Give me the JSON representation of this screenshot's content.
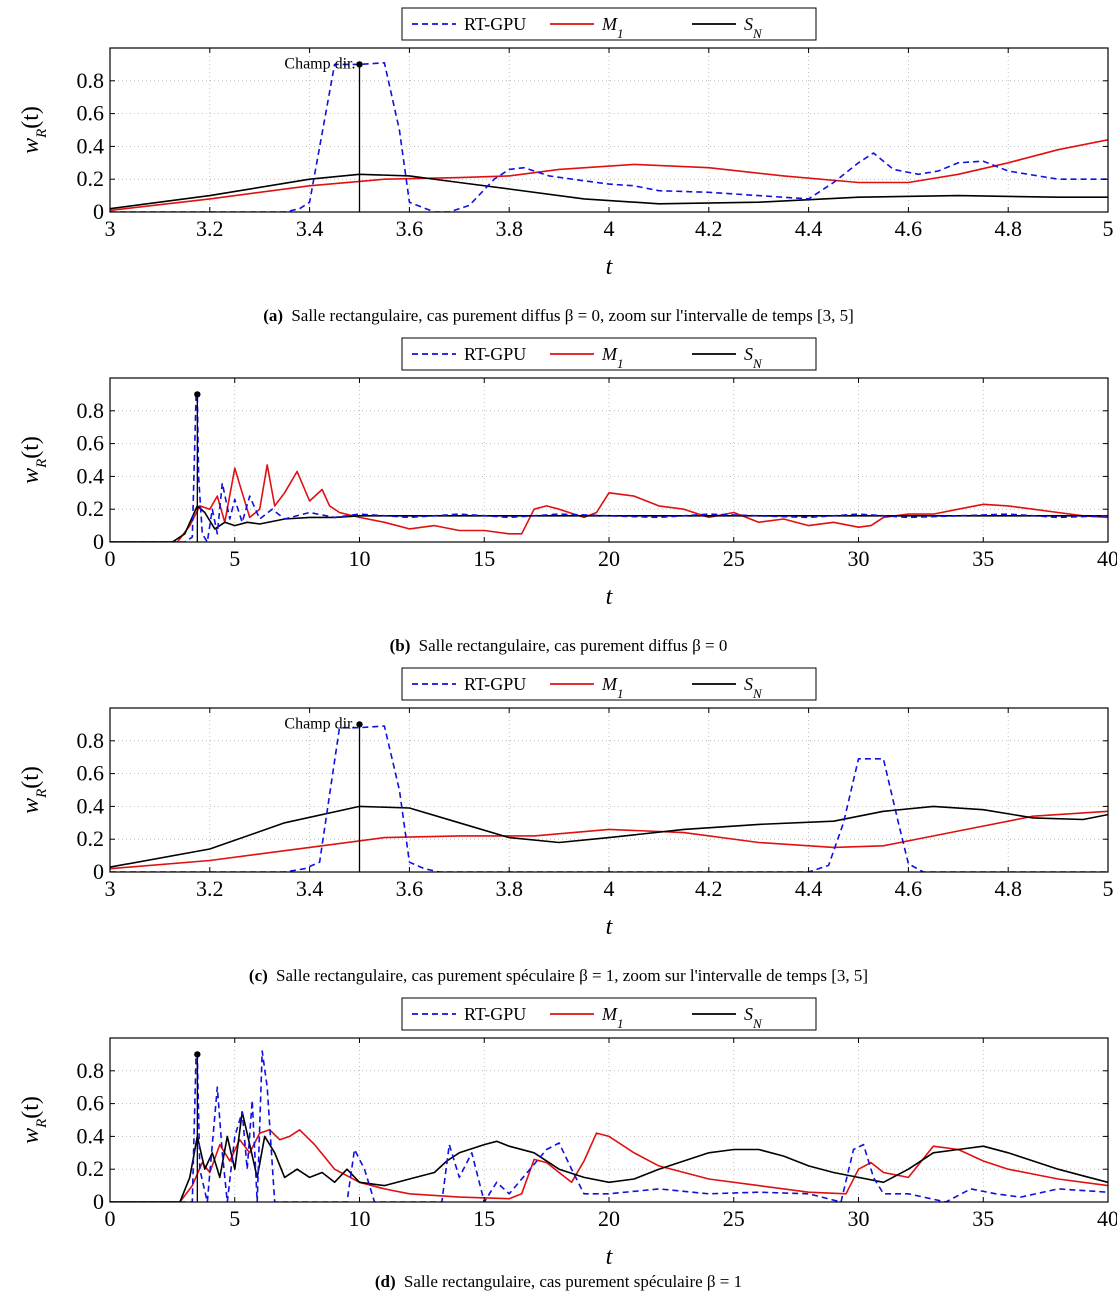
{
  "colors": {
    "rt_gpu": "#1010e0",
    "m1": "#e01010",
    "sn": "#000000",
    "grid": "#b0b0b0"
  },
  "chart_data": [
    {
      "id": "a",
      "type": "line",
      "caption_label": "(a)",
      "caption_text": "Salle rectangulaire, cas purement diffus β = 0, zoom sur l'intervalle de temps [3, 5]",
      "xlabel": "t",
      "ylabel": "w_R(t)",
      "xlim": [
        3,
        5
      ],
      "ylim": [
        0,
        1.0
      ],
      "xticks": [
        3,
        3.2,
        3.4,
        3.6,
        3.8,
        4,
        4.2,
        4.4,
        4.6,
        4.8,
        5
      ],
      "yticks": [
        0,
        0.2,
        0.4,
        0.6,
        0.8
      ],
      "grid": true,
      "legend_position": "top-center-outside",
      "annotation": {
        "text": "Champ dir.",
        "x": 3.5,
        "y": 0.9
      },
      "series": [
        {
          "name": "RT-GPU",
          "style": "dashed",
          "color_key": "rt_gpu",
          "x": [
            3.0,
            3.35,
            3.38,
            3.4,
            3.45,
            3.5,
            3.55,
            3.58,
            3.6,
            3.65,
            3.68,
            3.72,
            3.77,
            3.8,
            3.83,
            3.88,
            3.95,
            4.0,
            4.05,
            4.1,
            4.2,
            4.3,
            4.4,
            4.45,
            4.5,
            4.53,
            4.57,
            4.62,
            4.66,
            4.7,
            4.75,
            4.8,
            4.9,
            5.0
          ],
          "y": [
            0.0,
            0.0,
            0.02,
            0.06,
            0.9,
            0.9,
            0.91,
            0.5,
            0.06,
            0.0,
            0.0,
            0.04,
            0.2,
            0.26,
            0.27,
            0.22,
            0.19,
            0.17,
            0.16,
            0.13,
            0.12,
            0.1,
            0.08,
            0.18,
            0.3,
            0.36,
            0.26,
            0.23,
            0.25,
            0.3,
            0.31,
            0.25,
            0.2,
            0.2
          ]
        },
        {
          "name": "M_1",
          "style": "solid",
          "color_key": "m1",
          "x": [
            3.0,
            3.2,
            3.4,
            3.55,
            3.7,
            3.8,
            3.9,
            4.05,
            4.2,
            4.35,
            4.5,
            4.6,
            4.7,
            4.8,
            4.9,
            5.0
          ],
          "y": [
            0.01,
            0.08,
            0.16,
            0.2,
            0.21,
            0.22,
            0.26,
            0.29,
            0.27,
            0.22,
            0.18,
            0.18,
            0.23,
            0.3,
            0.38,
            0.44
          ]
        },
        {
          "name": "S_N",
          "style": "solid",
          "color_key": "sn",
          "x": [
            3.0,
            3.2,
            3.4,
            3.5,
            3.6,
            3.7,
            3.8,
            3.95,
            4.1,
            4.3,
            4.5,
            4.7,
            4.9,
            5.0
          ],
          "y": [
            0.02,
            0.1,
            0.2,
            0.23,
            0.22,
            0.18,
            0.14,
            0.08,
            0.05,
            0.06,
            0.09,
            0.1,
            0.09,
            0.09
          ]
        }
      ]
    },
    {
      "id": "b",
      "type": "line",
      "caption_label": "(b)",
      "caption_text": "Salle rectangulaire, cas purement diffus β = 0",
      "xlabel": "t",
      "ylabel": "w_R(t)",
      "xlim": [
        0,
        40
      ],
      "ylim": [
        0,
        1.0
      ],
      "xticks": [
        0,
        5,
        10,
        15,
        20,
        25,
        30,
        35,
        40
      ],
      "yticks": [
        0,
        0.2,
        0.4,
        0.6,
        0.8
      ],
      "grid": true,
      "legend_position": "top-center-outside",
      "annotation": {
        "text": "",
        "x": 3.5,
        "y": 0.9
      },
      "series": [
        {
          "name": "RT-GPU",
          "style": "dashed",
          "color_key": "rt_gpu",
          "x": [
            0,
            3.0,
            3.3,
            3.45,
            3.5,
            3.55,
            3.7,
            3.9,
            4.1,
            4.3,
            4.5,
            4.8,
            5.0,
            5.3,
            5.6,
            6.0,
            6.5,
            7.0,
            8.0,
            9.0,
            10.0,
            12.0,
            14.0,
            16.0,
            18.0,
            20.0,
            22.0,
            24.0,
            26.0,
            28.0,
            30.0,
            32.0,
            34.0,
            36.0,
            38.0,
            40.0
          ],
          "y": [
            0,
            0,
            0.03,
            0.9,
            0.9,
            0.4,
            0.05,
            0.0,
            0.2,
            0.05,
            0.36,
            0.14,
            0.26,
            0.12,
            0.28,
            0.14,
            0.2,
            0.14,
            0.18,
            0.15,
            0.17,
            0.15,
            0.17,
            0.15,
            0.17,
            0.16,
            0.15,
            0.17,
            0.16,
            0.15,
            0.17,
            0.15,
            0.16,
            0.17,
            0.15,
            0.16
          ]
        },
        {
          "name": "M_1",
          "style": "solid",
          "color_key": "m1",
          "x": [
            0,
            2.7,
            3.2,
            3.6,
            4.0,
            4.3,
            4.6,
            5.0,
            5.3,
            5.6,
            6.0,
            6.3,
            6.6,
            7.0,
            7.5,
            8.0,
            8.5,
            8.8,
            9.2,
            10.0,
            11.0,
            12.0,
            13.0,
            14.0,
            15.0,
            16.0,
            16.5,
            17.0,
            17.5,
            18.0,
            19.0,
            19.5,
            20.0,
            21.0,
            22.0,
            23.0,
            24.0,
            25.0,
            26.0,
            27.0,
            28.0,
            29.0,
            30.0,
            30.5,
            31.0,
            32.0,
            33.0,
            34.0,
            35.0,
            36.0,
            37.0,
            38.0,
            39.0,
            40.0
          ],
          "y": [
            0,
            0.0,
            0.1,
            0.22,
            0.2,
            0.28,
            0.12,
            0.45,
            0.3,
            0.15,
            0.2,
            0.47,
            0.22,
            0.3,
            0.43,
            0.25,
            0.32,
            0.22,
            0.18,
            0.15,
            0.12,
            0.08,
            0.1,
            0.07,
            0.07,
            0.05,
            0.05,
            0.2,
            0.22,
            0.2,
            0.15,
            0.18,
            0.3,
            0.28,
            0.22,
            0.2,
            0.15,
            0.18,
            0.12,
            0.14,
            0.1,
            0.12,
            0.09,
            0.1,
            0.15,
            0.17,
            0.17,
            0.2,
            0.23,
            0.22,
            0.2,
            0.18,
            0.16,
            0.15
          ]
        },
        {
          "name": "S_N",
          "style": "solid",
          "color_key": "sn",
          "x": [
            0,
            2.5,
            3.0,
            3.5,
            3.8,
            4.2,
            4.6,
            5.0,
            5.5,
            6.0,
            7.0,
            8.0,
            9.0,
            10.0,
            12.0,
            15.0,
            20.0,
            25.0,
            30.0,
            35.0,
            40.0
          ],
          "y": [
            0,
            0,
            0.05,
            0.22,
            0.18,
            0.08,
            0.12,
            0.1,
            0.12,
            0.11,
            0.14,
            0.15,
            0.15,
            0.16,
            0.16,
            0.16,
            0.16,
            0.16,
            0.16,
            0.16,
            0.16
          ]
        }
      ]
    },
    {
      "id": "c",
      "type": "line",
      "caption_label": "(c)",
      "caption_text": "Salle rectangulaire, cas purement spéculaire β = 1, zoom sur l'intervalle de temps [3, 5]",
      "xlabel": "t",
      "ylabel": "w_R(t)",
      "xlim": [
        3,
        5
      ],
      "ylim": [
        0,
        1.0
      ],
      "xticks": [
        3,
        3.2,
        3.4,
        3.6,
        3.8,
        4,
        4.2,
        4.4,
        4.6,
        4.8,
        5
      ],
      "yticks": [
        0,
        0.2,
        0.4,
        0.6,
        0.8
      ],
      "grid": true,
      "legend_position": "top-center-outside",
      "annotation": {
        "text": "Champ dir.",
        "x": 3.5,
        "y": 0.9
      },
      "series": [
        {
          "name": "RT-GPU",
          "style": "dashed",
          "color_key": "rt_gpu",
          "x": [
            3.0,
            3.35,
            3.39,
            3.42,
            3.46,
            3.5,
            3.55,
            3.58,
            3.6,
            3.63,
            3.66,
            4.4,
            4.44,
            4.47,
            4.5,
            4.55,
            4.58,
            4.6,
            4.63,
            5.0
          ],
          "y": [
            0.0,
            0.0,
            0.02,
            0.06,
            0.88,
            0.88,
            0.89,
            0.5,
            0.06,
            0.02,
            0.0,
            0.0,
            0.04,
            0.3,
            0.69,
            0.69,
            0.3,
            0.05,
            0.0,
            0.0
          ]
        },
        {
          "name": "M_1",
          "style": "solid",
          "color_key": "m1",
          "x": [
            3.0,
            3.2,
            3.4,
            3.55,
            3.7,
            3.85,
            4.0,
            4.15,
            4.3,
            4.45,
            4.55,
            4.7,
            4.85,
            5.0
          ],
          "y": [
            0.02,
            0.07,
            0.15,
            0.21,
            0.22,
            0.22,
            0.26,
            0.24,
            0.18,
            0.15,
            0.16,
            0.25,
            0.34,
            0.37
          ]
        },
        {
          "name": "S_N",
          "style": "solid",
          "color_key": "sn",
          "x": [
            3.0,
            3.2,
            3.35,
            3.5,
            3.6,
            3.7,
            3.8,
            3.9,
            4.0,
            4.15,
            4.3,
            4.45,
            4.55,
            4.65,
            4.75,
            4.85,
            4.95,
            5.0
          ],
          "y": [
            0.03,
            0.14,
            0.3,
            0.4,
            0.39,
            0.3,
            0.21,
            0.18,
            0.21,
            0.26,
            0.29,
            0.31,
            0.37,
            0.4,
            0.38,
            0.33,
            0.32,
            0.35
          ]
        }
      ]
    },
    {
      "id": "d",
      "type": "line",
      "caption_label": "(d)",
      "caption_text": "Salle rectangulaire, cas purement spéculaire β = 1",
      "xlabel": "t",
      "ylabel": "w_R(t)",
      "xlim": [
        0,
        40
      ],
      "ylim": [
        0,
        1.0
      ],
      "xticks": [
        0,
        5,
        10,
        15,
        20,
        25,
        30,
        35,
        40
      ],
      "yticks": [
        0,
        0.2,
        0.4,
        0.6,
        0.8
      ],
      "grid": true,
      "legend_position": "top-center-outside",
      "annotation": {
        "text": "",
        "x": 3.5,
        "y": 0.9
      },
      "series": [
        {
          "name": "RT-GPU",
          "style": "dashed",
          "color_key": "rt_gpu",
          "x": [
            0,
            3.3,
            3.45,
            3.5,
            3.6,
            3.9,
            4.3,
            4.5,
            4.7,
            5.0,
            5.3,
            5.5,
            5.7,
            5.9,
            6.1,
            6.3,
            6.6,
            7.0,
            9.5,
            9.8,
            10.2,
            10.6,
            11.0,
            13.3,
            13.6,
            14.0,
            14.5,
            15.0,
            15.5,
            16.0,
            17.5,
            18.0,
            18.5,
            19.0,
            20.0,
            22.0,
            24.0,
            26.0,
            28.0,
            29.3,
            29.8,
            30.2,
            30.6,
            31.0,
            32.0,
            33.5,
            34.5,
            35.5,
            36.5,
            38.0,
            40.0
          ],
          "y": [
            0,
            0,
            0.9,
            0.9,
            0.2,
            0.0,
            0.7,
            0.3,
            0.0,
            0.4,
            0.55,
            0.2,
            0.62,
            0.0,
            0.92,
            0.7,
            0.0,
            0.0,
            0.0,
            0.32,
            0.2,
            0.0,
            0.0,
            0.0,
            0.35,
            0.15,
            0.3,
            0.0,
            0.12,
            0.05,
            0.32,
            0.36,
            0.2,
            0.05,
            0.05,
            0.08,
            0.05,
            0.06,
            0.05,
            0.0,
            0.32,
            0.35,
            0.15,
            0.05,
            0.05,
            0.0,
            0.08,
            0.05,
            0.03,
            0.08,
            0.06
          ]
        },
        {
          "name": "M_1",
          "style": "solid",
          "color_key": "m1",
          "x": [
            0,
            2.8,
            3.3,
            3.7,
            4.0,
            4.4,
            4.8,
            5.2,
            5.6,
            6.0,
            6.4,
            6.8,
            7.2,
            7.6,
            8.2,
            9.0,
            10.0,
            11.0,
            12.0,
            14.0,
            16.0,
            16.5,
            17.0,
            17.5,
            18.0,
            18.5,
            19.0,
            19.5,
            20.0,
            21.0,
            22.0,
            24.0,
            26.0,
            28.0,
            29.5,
            30.0,
            30.5,
            31.0,
            32.0,
            33.0,
            34.0,
            35.0,
            36.0,
            38.0,
            40.0
          ],
          "y": [
            0,
            0.0,
            0.1,
            0.24,
            0.18,
            0.35,
            0.25,
            0.38,
            0.3,
            0.42,
            0.44,
            0.38,
            0.4,
            0.44,
            0.35,
            0.2,
            0.12,
            0.08,
            0.05,
            0.03,
            0.02,
            0.05,
            0.26,
            0.24,
            0.18,
            0.12,
            0.25,
            0.42,
            0.4,
            0.3,
            0.22,
            0.14,
            0.1,
            0.06,
            0.05,
            0.2,
            0.24,
            0.18,
            0.15,
            0.34,
            0.32,
            0.25,
            0.2,
            0.14,
            0.1
          ]
        },
        {
          "name": "S_N",
          "style": "solid",
          "color_key": "sn",
          "x": [
            0,
            2.8,
            3.2,
            3.5,
            3.8,
            4.1,
            4.4,
            4.7,
            5.0,
            5.3,
            5.6,
            5.9,
            6.2,
            6.6,
            7.0,
            7.5,
            8.0,
            8.5,
            9.0,
            9.5,
            10.0,
            11.0,
            12.0,
            13.0,
            13.5,
            14.0,
            15.0,
            15.5,
            16.0,
            17.0,
            18.0,
            19.0,
            20.0,
            21.0,
            22.0,
            23.0,
            24.0,
            25.0,
            26.0,
            27.0,
            28.0,
            29.0,
            30.0,
            31.0,
            32.0,
            33.0,
            34.0,
            35.0,
            36.0,
            37.0,
            38.0,
            39.0,
            40.0
          ],
          "y": [
            0,
            0.0,
            0.15,
            0.4,
            0.2,
            0.3,
            0.15,
            0.4,
            0.2,
            0.55,
            0.35,
            0.15,
            0.4,
            0.3,
            0.15,
            0.2,
            0.15,
            0.18,
            0.12,
            0.2,
            0.12,
            0.1,
            0.14,
            0.18,
            0.25,
            0.3,
            0.35,
            0.37,
            0.34,
            0.3,
            0.2,
            0.15,
            0.12,
            0.14,
            0.2,
            0.25,
            0.3,
            0.32,
            0.32,
            0.28,
            0.22,
            0.18,
            0.15,
            0.12,
            0.2,
            0.3,
            0.32,
            0.34,
            0.3,
            0.25,
            0.2,
            0.16,
            0.12
          ]
        }
      ]
    }
  ]
}
